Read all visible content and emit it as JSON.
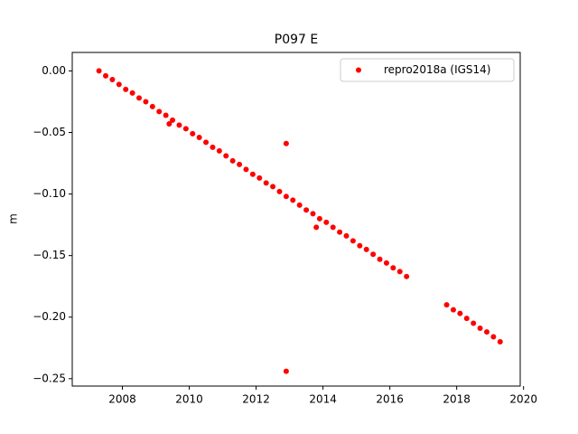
{
  "chart_data": {
    "type": "scatter",
    "title": "P097 E",
    "ylabel": "m",
    "series": [
      {
        "name": "repro2018a (IGS14)",
        "color": "#ff0000",
        "x": [
          2007.3,
          2007.5,
          2007.7,
          2007.9,
          2008.1,
          2008.3,
          2008.5,
          2008.7,
          2008.9,
          2009.1,
          2009.3,
          2009.5,
          2009.7,
          2009.9,
          2010.1,
          2010.3,
          2010.5,
          2010.7,
          2010.9,
          2011.1,
          2011.3,
          2011.5,
          2011.7,
          2011.9,
          2012.1,
          2012.3,
          2012.5,
          2012.7,
          2012.9,
          2013.1,
          2013.3,
          2013.5,
          2013.7,
          2013.9,
          2014.1,
          2014.3,
          2014.5,
          2014.7,
          2014.9,
          2015.1,
          2015.3,
          2015.5,
          2015.7,
          2015.9,
          2016.1,
          2016.3,
          2016.5,
          2017.7,
          2017.9,
          2018.1,
          2018.3,
          2018.5,
          2018.7,
          2018.9,
          2019.1,
          2019.3,
          2009.4,
          2012.9,
          2012.9,
          2013.8
        ],
        "values": [
          0,
          -0.004,
          -0.007,
          -0.011,
          -0.015,
          -0.018,
          -0.022,
          -0.025,
          -0.029,
          -0.033,
          -0.036,
          -0.04,
          -0.044,
          -0.047,
          -0.051,
          -0.054,
          -0.058,
          -0.062,
          -0.065,
          -0.069,
          -0.073,
          -0.076,
          -0.08,
          -0.084,
          -0.087,
          -0.091,
          -0.094,
          -0.098,
          -0.102,
          -0.105,
          -0.109,
          -0.113,
          -0.116,
          -0.12,
          -0.123,
          -0.127,
          -0.131,
          -0.134,
          -0.138,
          -0.142,
          -0.145,
          -0.149,
          -0.153,
          -0.156,
          -0.16,
          -0.163,
          -0.167,
          -0.19,
          -0.194,
          -0.197,
          -0.201,
          -0.205,
          -0.209,
          -0.212,
          -0.216,
          -0.22,
          -0.043,
          -0.059,
          -0.244,
          -0.127
        ]
      }
    ],
    "xlim": [
      2006.5,
      2019.9
    ],
    "xticks": [
      2008,
      2010,
      2012,
      2014,
      2016,
      2018,
      2020
    ],
    "ylim": [
      -0.256,
      0.015
    ],
    "yticks": [
      {
        "value": -0.25,
        "label": "−0.25"
      },
      {
        "value": -0.2,
        "label": "−0.20"
      },
      {
        "value": -0.15,
        "label": "−0.15"
      },
      {
        "value": -0.1,
        "label": "−0.10"
      },
      {
        "value": -0.05,
        "label": "−0.05"
      },
      {
        "value": 0,
        "label": "0.00"
      }
    ],
    "legend": "upper right",
    "grid": false
  }
}
